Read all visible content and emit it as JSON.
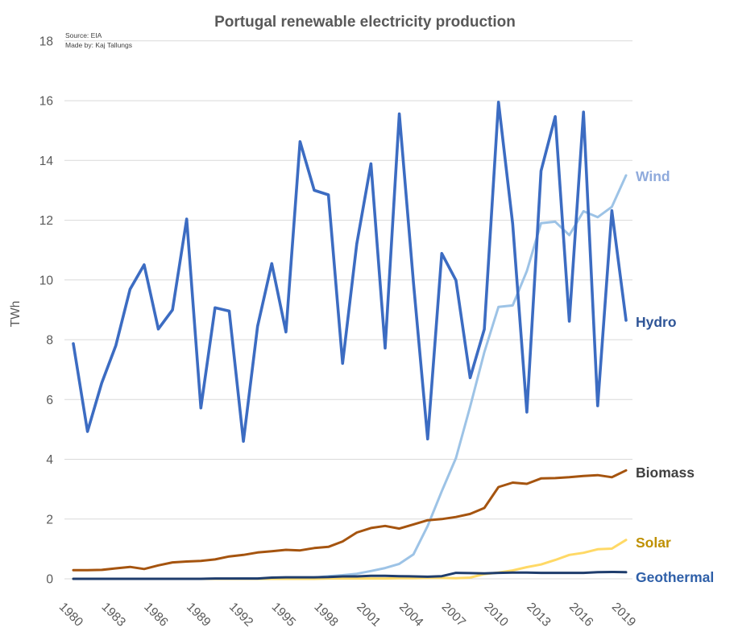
{
  "chart_data": {
    "type": "line",
    "title": "Portugal renewable electricity production",
    "source_note": "Source: EIA",
    "author_note": "Made by: Kaj Tallungs",
    "ylabel": "TWh",
    "xlabel": "",
    "ylim": [
      0,
      18
    ],
    "y_ticks": [
      0,
      2,
      4,
      6,
      8,
      10,
      12,
      14,
      16,
      18
    ],
    "x_tick_years": [
      1980,
      1983,
      1986,
      1989,
      1992,
      1995,
      1998,
      2001,
      2004,
      2007,
      2010,
      2013,
      2016,
      2019
    ],
    "x": [
      1980,
      1981,
      1982,
      1983,
      1984,
      1985,
      1986,
      1987,
      1988,
      1989,
      1990,
      1991,
      1992,
      1993,
      1994,
      1995,
      1996,
      1997,
      1998,
      1999,
      2000,
      2001,
      2002,
      2003,
      2004,
      2005,
      2006,
      2007,
      2008,
      2009,
      2010,
      2011,
      2012,
      2013,
      2014,
      2015,
      2016,
      2017,
      2018,
      2019
    ],
    "grid": "horizontal",
    "gridline_color": "#d9d9d9",
    "legend_position": "labels-at-line-ends-right",
    "series": [
      {
        "name": "Wind",
        "color": "#9dc3e6",
        "label_color": "#8faadc",
        "values": [
          0,
          0,
          0,
          0,
          0,
          0,
          0,
          0,
          0,
          0,
          0,
          0,
          0.01,
          0.01,
          0.02,
          0.02,
          0.03,
          0.04,
          0.09,
          0.12,
          0.17,
          0.26,
          0.36,
          0.5,
          0.82,
          1.77,
          2.93,
          4.04,
          5.76,
          7.58,
          9.1,
          9.15,
          10.3,
          11.9,
          11.95,
          11.5,
          12.3,
          12.1,
          12.45,
          13.5
        ]
      },
      {
        "name": "Solar",
        "color": "#ffd966",
        "label_color": "#bf9000",
        "values": [
          0,
          0,
          0,
          0,
          0,
          0,
          0,
          0,
          0,
          0,
          0,
          0,
          0,
          0,
          0,
          0,
          0,
          0,
          0.01,
          0.01,
          0.01,
          0.01,
          0.01,
          0.02,
          0.02,
          0.03,
          0.03,
          0.02,
          0.04,
          0.16,
          0.21,
          0.28,
          0.39,
          0.48,
          0.63,
          0.8,
          0.87,
          0.99,
          1.01,
          1.3
        ]
      },
      {
        "name": "Geothermal",
        "color": "#1f3d6d",
        "label_color": "#2e5fa8",
        "values": [
          0,
          0,
          0,
          0,
          0,
          0,
          0,
          0,
          0,
          0,
          0.01,
          0.01,
          0.01,
          0.01,
          0.04,
          0.05,
          0.05,
          0.05,
          0.06,
          0.08,
          0.08,
          0.1,
          0.1,
          0.09,
          0.08,
          0.07,
          0.09,
          0.2,
          0.19,
          0.18,
          0.2,
          0.21,
          0.21,
          0.2,
          0.2,
          0.2,
          0.2,
          0.22,
          0.23,
          0.22
        ]
      },
      {
        "name": "Biomass",
        "color": "#a5540f",
        "label_color": "#404040",
        "values": [
          0.29,
          0.29,
          0.3,
          0.35,
          0.4,
          0.33,
          0.45,
          0.55,
          0.58,
          0.6,
          0.65,
          0.75,
          0.8,
          0.88,
          0.92,
          0.97,
          0.95,
          1.03,
          1.07,
          1.25,
          1.55,
          1.7,
          1.77,
          1.68,
          1.82,
          1.96,
          2.0,
          2.07,
          2.17,
          2.37,
          3.07,
          3.22,
          3.18,
          3.36,
          3.37,
          3.4,
          3.44,
          3.47,
          3.4,
          3.63
        ]
      },
      {
        "name": "Hydro",
        "color": "#3c6cc2",
        "label_color": "#2f5597",
        "values": [
          7.87,
          4.93,
          6.55,
          7.81,
          9.69,
          10.51,
          8.36,
          9.0,
          12.04,
          5.72,
          9.07,
          8.96,
          4.6,
          8.45,
          10.55,
          8.26,
          14.63,
          13.0,
          12.85,
          7.21,
          11.21,
          13.89,
          7.72,
          15.56,
          9.9,
          4.68,
          10.89,
          9.99,
          6.73,
          8.35,
          15.95,
          11.88,
          5.58,
          13.65,
          15.47,
          8.62,
          15.62,
          5.79,
          12.32,
          8.65
        ]
      }
    ]
  }
}
